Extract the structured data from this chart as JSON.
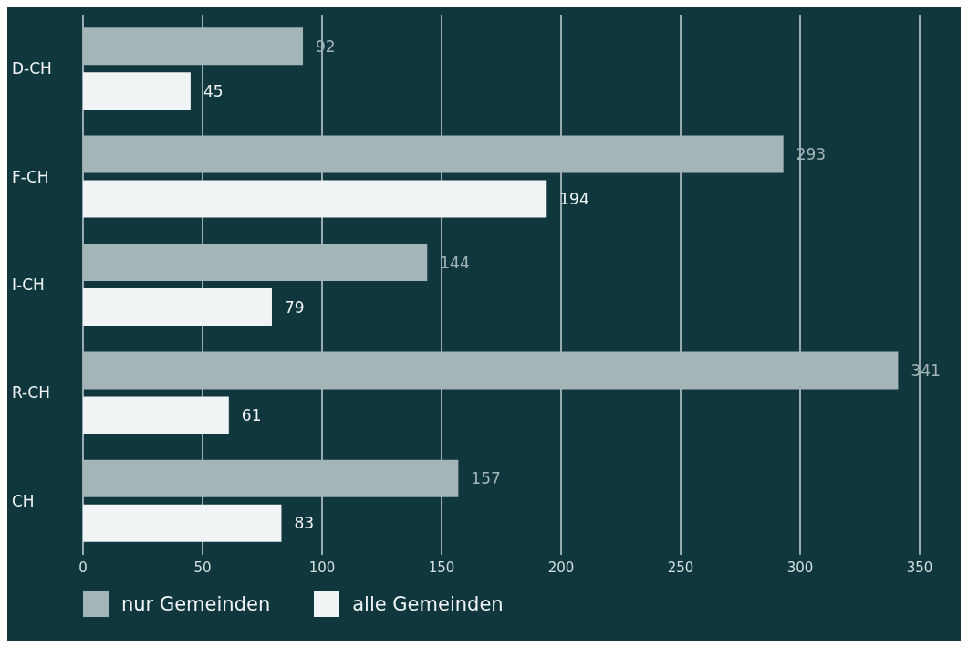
{
  "chart_data": {
    "type": "bar",
    "orientation": "horizontal",
    "categories": [
      "D-CH",
      "F-CH",
      "I-CH",
      "R-CH",
      "CH"
    ],
    "series": [
      {
        "name": "nur Gemeinden",
        "color": "#a3b5b7",
        "values": [
          92,
          293,
          144,
          341,
          157
        ]
      },
      {
        "name": "alle Gemeinden",
        "color": "#f1f4f5",
        "values": [
          45,
          194,
          79,
          61,
          83
        ]
      }
    ],
    "xlim": [
      0,
      350
    ],
    "xticks": [
      0,
      50,
      100,
      150,
      200,
      250,
      300,
      350
    ],
    "grid": "x",
    "data_labels": true,
    "legend": "bottom"
  }
}
